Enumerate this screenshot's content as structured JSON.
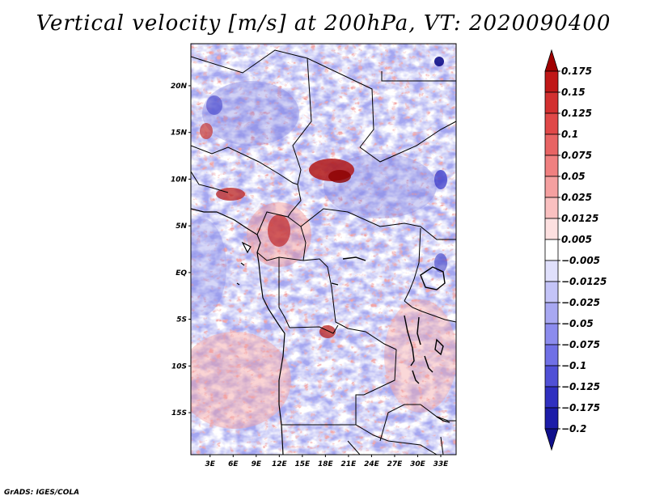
{
  "title": "Vertical velocity [m/s] at 200hPa, VT: 2020090400",
  "credit": "GrADS: IGES/COLA",
  "map": {
    "lat_labels": [
      "20N",
      "15N",
      "10N",
      "5N",
      "EQ",
      "5S",
      "10S",
      "15S"
    ],
    "lon_labels": [
      "3E",
      "6E",
      "9E",
      "12E",
      "15E",
      "18E",
      "21E",
      "24E",
      "27E",
      "30E",
      "33E"
    ],
    "lat_range": [
      -19.5,
      24.5
    ],
    "lon_range": [
      0.5,
      35
    ]
  },
  "colorbar": {
    "labels": [
      "0.175",
      "0.15",
      "0.125",
      "0.1",
      "0.075",
      "0.05",
      "0.025",
      "0.0125",
      "0.005",
      "-0.005",
      "-0.0125",
      "-0.025",
      "-0.05",
      "-0.075",
      "-0.1",
      "-0.125",
      "-0.175",
      "-0.2"
    ],
    "colors": [
      "#a00000",
      "#c01818",
      "#d23030",
      "#e04848",
      "#e86464",
      "#f08080",
      "#f5a0a0",
      "#fac0c0",
      "#fde0e0",
      "#ffffff",
      "#e0e0fc",
      "#c4c4f8",
      "#a8a8f2",
      "#8c8cee",
      "#7070e6",
      "#5050d6",
      "#3030c0",
      "#1c1ca8",
      "#10108c"
    ]
  }
}
